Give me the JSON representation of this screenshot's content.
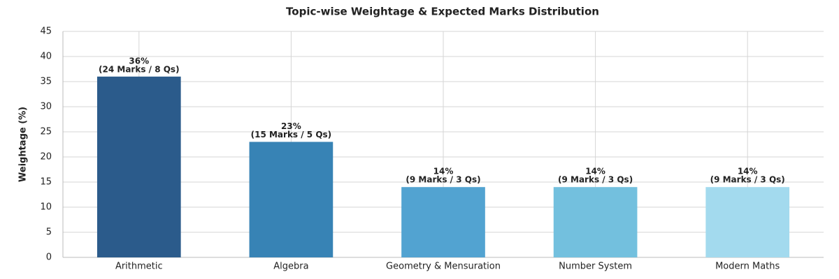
{
  "chart_data": {
    "type": "bar",
    "title": "Topic-wise Weightage & Expected Marks Distribution",
    "y_label": "Weightage (%)",
    "categories": [
      "Arithmetic",
      "Algebra",
      "Geometry & Mensuration",
      "Number System",
      "Modern Maths"
    ],
    "values": [
      36,
      23,
      14,
      14,
      14
    ],
    "value_labels": [
      "36%",
      "23%",
      "14%",
      "14%",
      "14%"
    ],
    "details": [
      "(24 Marks / 8 Qs)",
      "(15 Marks / 5 Qs)",
      "(9 Marks / 3 Qs)",
      "(9 Marks / 3 Qs)",
      "(9 Marks / 3 Qs)"
    ],
    "colors": [
      "#2b5b8b",
      "#3783b5",
      "#52a3d1",
      "#73c0de",
      "#a3daee"
    ],
    "ylim": [
      0,
      45
    ],
    "yticks": [
      0,
      5,
      10,
      15,
      20,
      25,
      30,
      35,
      40,
      45
    ],
    "grid": true
  }
}
